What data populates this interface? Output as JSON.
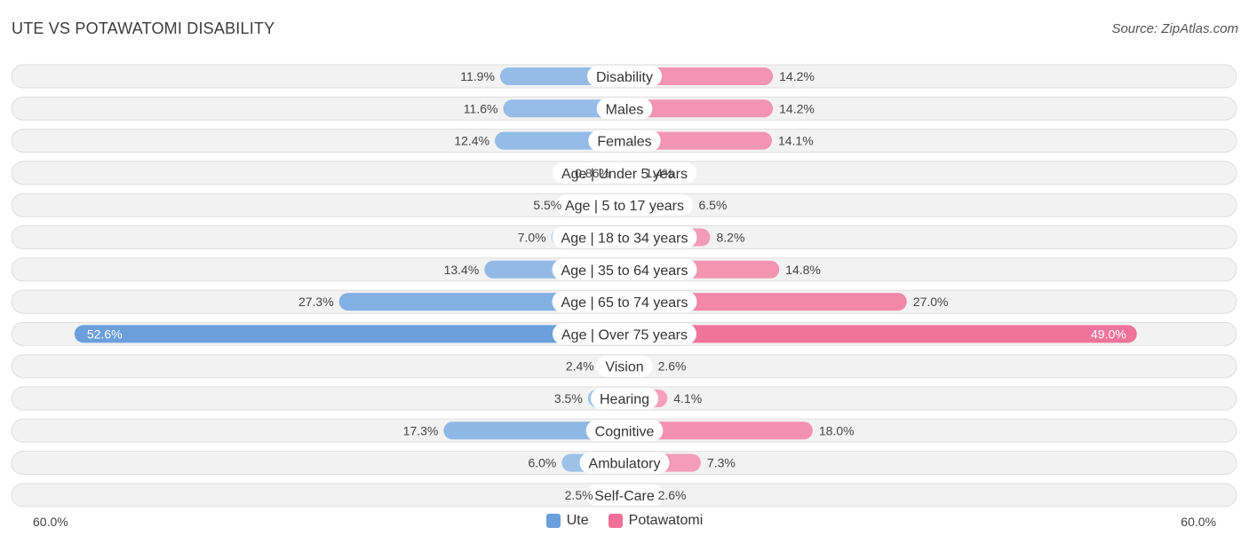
{
  "header": {
    "title": "UTE VS POTAWATOMI DISABILITY",
    "source": "Source: ZipAtlas.com"
  },
  "axis": {
    "left_label": "60.0%",
    "right_label": "60.0%"
  },
  "legend": {
    "items": [
      {
        "label": "Ute",
        "color": "#6a9fdc"
      },
      {
        "label": "Potawatomi",
        "color": "#f07099"
      }
    ]
  },
  "colors": {
    "ute_light": "#a8c8ec",
    "ute_dark": "#6a9fdc",
    "pota_light": "#f5a8c2",
    "pota_dark": "#f07099"
  },
  "chart_data": {
    "type": "bar",
    "orientation": "horizontal-diverging",
    "xlim": [
      -60,
      60
    ],
    "categories": [
      "Disability",
      "Males",
      "Females",
      "Age | Under 5 years",
      "Age | 5 to 17 years",
      "Age | 18 to 34 years",
      "Age | 35 to 64 years",
      "Age | 65 to 74 years",
      "Age | Over 75 years",
      "Vision",
      "Hearing",
      "Cognitive",
      "Ambulatory",
      "Self-Care"
    ],
    "series": [
      {
        "name": "Ute",
        "values": [
          11.9,
          11.6,
          12.4,
          0.86,
          5.5,
          7.0,
          13.4,
          27.3,
          52.6,
          2.4,
          3.5,
          17.3,
          6.0,
          2.5
        ],
        "labels": [
          "11.9%",
          "11.6%",
          "12.4%",
          "0.86%",
          "5.5%",
          "7.0%",
          "13.4%",
          "27.3%",
          "52.6%",
          "2.4%",
          "3.5%",
          "17.3%",
          "6.0%",
          "2.5%"
        ]
      },
      {
        "name": "Potawatomi",
        "values": [
          14.2,
          14.2,
          14.1,
          1.4,
          6.5,
          8.2,
          14.8,
          27.0,
          49.0,
          2.6,
          4.1,
          18.0,
          7.3,
          2.6
        ],
        "labels": [
          "14.2%",
          "14.2%",
          "14.1%",
          "1.4%",
          "6.5%",
          "8.2%",
          "14.8%",
          "27.0%",
          "49.0%",
          "2.6%",
          "4.1%",
          "18.0%",
          "7.3%",
          "2.6%"
        ]
      }
    ]
  }
}
